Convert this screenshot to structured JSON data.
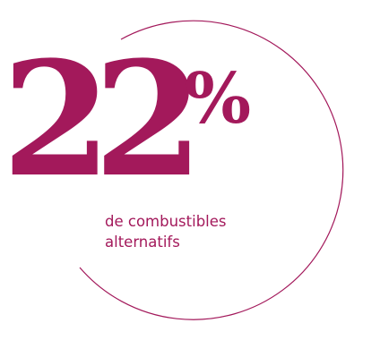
{
  "stat": {
    "value": "22",
    "unit": "%",
    "caption_line1": "de combustibles",
    "caption_line2": "alternatifs"
  },
  "colors": {
    "accent": "#a3195b",
    "background": "#ffffff"
  }
}
